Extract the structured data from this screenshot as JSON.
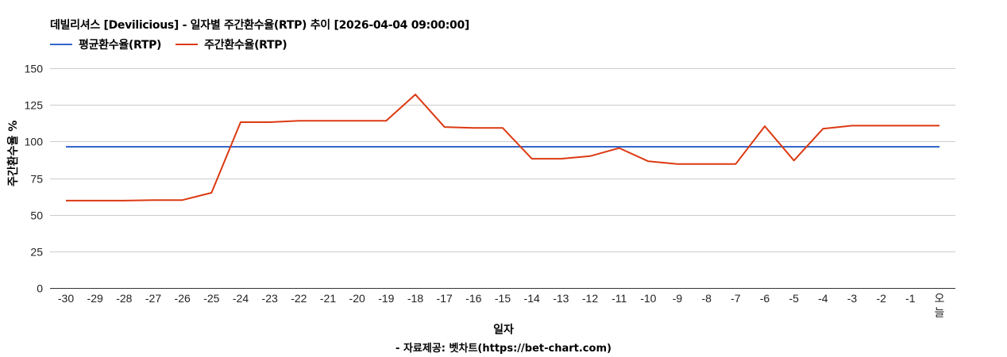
{
  "title": "데빌리셔스 [Devilicious] - 일자별 주간환수율(RTP) 추이 [2026-04-04 09:00:00]",
  "legend": [
    {
      "label": "평균환수율(RTP)",
      "color": "#3366cc"
    },
    {
      "label": "주간환수율(RTP)",
      "color": "#dc3912"
    }
  ],
  "y_axis_label": "주간환수율 %",
  "x_axis_label": "일자",
  "source": "- 자료제공: 벳차트(https://bet-chart.com)",
  "chart_data": {
    "type": "line",
    "title": "데빌리셔스 [Devilicious] - 일자별 주간환수율(RTP) 추이 [2026-04-04 09:00:00]",
    "xlabel": "일자",
    "ylabel": "주간환수율 %",
    "ylim": [
      0,
      150
    ],
    "yticks": [
      0,
      25,
      50,
      75,
      100,
      125,
      150
    ],
    "grid": true,
    "legend_position": "top",
    "categories": [
      "-30",
      "-29",
      "-28",
      "-27",
      "-26",
      "-25",
      "-24",
      "-23",
      "-22",
      "-21",
      "-20",
      "-19",
      "-18",
      "-17",
      "-16",
      "-15",
      "-14",
      "-13",
      "-12",
      "-11",
      "-10",
      "-9",
      "-8",
      "-7",
      "-6",
      "-5",
      "-4",
      "-3",
      "-2",
      "-1",
      "오늘"
    ],
    "series": [
      {
        "name": "평균환수율(RTP)",
        "color": "#3366cc",
        "values": [
          96.4,
          96.4,
          96.4,
          96.4,
          96.4,
          96.4,
          96.4,
          96.4,
          96.4,
          96.4,
          96.4,
          96.4,
          96.4,
          96.4,
          96.4,
          96.4,
          96.4,
          96.4,
          96.4,
          96.4,
          96.4,
          96.4,
          96.4,
          96.4,
          96.4,
          96.4,
          96.4,
          96.4,
          96.4,
          96.4,
          96.4
        ]
      },
      {
        "name": "주간환수율(RTP)",
        "color": "#dc3912",
        "values": [
          59.6,
          59.6,
          59.6,
          60.0,
          60.0,
          65.0,
          113.2,
          113.2,
          114.1,
          114.1,
          114.1,
          114.1,
          132.1,
          109.9,
          109.2,
          109.2,
          88.2,
          88.2,
          90.0,
          95.5,
          86.5,
          84.6,
          84.6,
          84.6,
          110.4,
          87.0,
          108.7,
          110.8,
          110.8,
          110.8,
          110.8
        ]
      }
    ]
  }
}
